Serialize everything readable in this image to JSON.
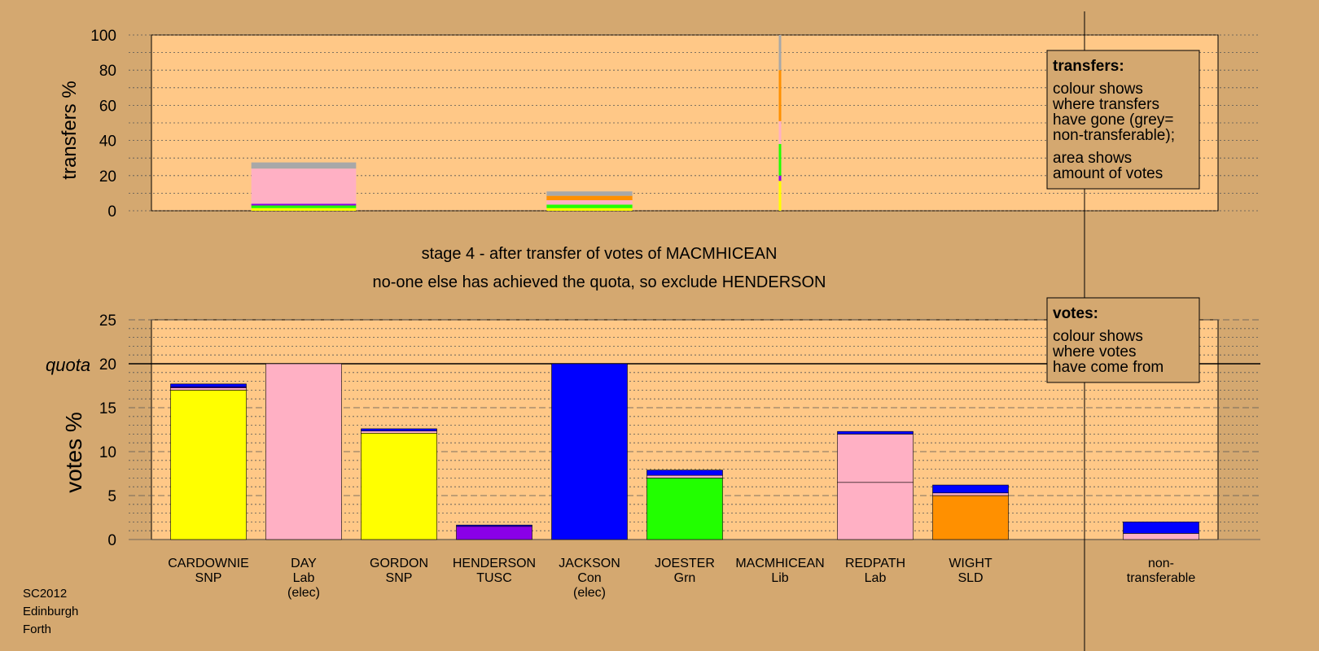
{
  "colors": {
    "background": "#d4a870",
    "plot_area": "#ffc887",
    "yellow": "#ffff00",
    "pink": "#ffb0c4",
    "blue": "#0000ff",
    "purple": "#8a00e8",
    "green": "#22ff00",
    "orange": "#ff9000",
    "grey": "#a8a8a8"
  },
  "stage_title": "stage 4 - after transfer of votes of MACMHICEAN",
  "stage_subtitle": "no-one else has achieved the quota, so exclude HENDERSON",
  "footer": [
    "SC2012",
    "Edinburgh",
    "Forth"
  ],
  "transfers_legend": {
    "heading": "transfers:",
    "lines1": [
      "colour shows",
      "where transfers",
      "have gone (grey=",
      "non-transferable);"
    ],
    "lines2": [
      "area shows",
      "amount of votes"
    ]
  },
  "votes_legend": {
    "heading": "votes:",
    "lines": [
      "colour shows",
      "where votes",
      "have come from"
    ]
  },
  "chart_data": [
    {
      "type": "bar",
      "name": "transfers",
      "ylabel": "transfers %",
      "ylim": [
        0,
        100
      ],
      "yticks": [
        0,
        20,
        40,
        60,
        80,
        100
      ],
      "grid": true,
      "bars": [
        {
          "slot": 2,
          "width": 1.1,
          "segments": [
            {
              "color": "yellow",
              "value": 1.5
            },
            {
              "color": "green",
              "value": 1.5
            },
            {
              "color": "purple",
              "value": 1
            },
            {
              "color": "pink",
              "value": 20
            },
            {
              "color": "grey",
              "value": 3.5
            }
          ]
        },
        {
          "slot": 5,
          "width": 0.9,
          "segments": [
            {
              "color": "yellow",
              "value": 1.5
            },
            {
              "color": "green",
              "value": 2
            },
            {
              "color": "pink",
              "value": 2.5
            },
            {
              "color": "orange",
              "value": 2.5
            },
            {
              "color": "grey",
              "value": 2.5
            }
          ]
        },
        {
          "slot": 7,
          "width": 0.03,
          "segments": [
            {
              "color": "yellow",
              "value": 17
            },
            {
              "color": "purple",
              "value": 3
            },
            {
              "color": "green",
              "value": 18
            },
            {
              "color": "pink",
              "value": 13
            },
            {
              "color": "orange",
              "value": 29
            },
            {
              "color": "grey",
              "value": 20
            }
          ]
        }
      ]
    },
    {
      "type": "bar",
      "name": "votes",
      "ylabel": "votes %",
      "ylim": [
        0,
        25
      ],
      "yticks": [
        0,
        5,
        10,
        15,
        20,
        25
      ],
      "quota": 20,
      "quota_label": "quota",
      "grid": true,
      "categories": [
        {
          "name": "CARDOWNIE",
          "party": "SNP",
          "note": "",
          "segments": [
            {
              "color": "yellow",
              "value": 17.0
            },
            {
              "color": "pink",
              "value": 0.25
            },
            {
              "color": "purple",
              "value": 0.1
            },
            {
              "color": "blue",
              "value": 0.35
            }
          ]
        },
        {
          "name": "DAY",
          "party": "Lab",
          "note": "(elec)",
          "segments": [
            {
              "color": "pink",
              "value": 20.0
            }
          ]
        },
        {
          "name": "GORDON",
          "party": "SNP",
          "note": "",
          "segments": [
            {
              "color": "yellow",
              "value": 12.1
            },
            {
              "color": "pink",
              "value": 0.25
            },
            {
              "color": "blue",
              "value": 0.25
            }
          ]
        },
        {
          "name": "HENDERSON",
          "party": "TUSC",
          "note": "",
          "segments": [
            {
              "color": "purple",
              "value": 1.5
            },
            {
              "color": "blue",
              "value": 0.15
            }
          ]
        },
        {
          "name": "JACKSON",
          "party": "Con",
          "note": "(elec)",
          "segments": [
            {
              "color": "blue",
              "value": 20.0
            }
          ]
        },
        {
          "name": "JOESTER",
          "party": "Grn",
          "note": "",
          "segments": [
            {
              "color": "green",
              "value": 7.0
            },
            {
              "color": "pink",
              "value": 0.3
            },
            {
              "color": "blue",
              "value": 0.6
            }
          ]
        },
        {
          "name": "MACMHICEAN",
          "party": "Lib",
          "note": "",
          "segments": []
        },
        {
          "name": "REDPATH",
          "party": "Lab",
          "note": "",
          "segments": [
            {
              "color": "pink",
              "value": 6.5
            },
            {
              "color": "pink",
              "value": 5.5
            },
            {
              "color": "blue",
              "value": 0.3
            }
          ]
        },
        {
          "name": "WIGHT",
          "party": "SLD",
          "note": "",
          "segments": [
            {
              "color": "orange",
              "value": 5.0
            },
            {
              "color": "pink",
              "value": 0.3
            },
            {
              "color": "blue",
              "value": 0.9
            }
          ]
        },
        {
          "name": "non-",
          "party": "transferable",
          "note": "",
          "slot": 11,
          "segments": [
            {
              "color": "pink",
              "value": 0.7
            },
            {
              "color": "blue",
              "value": 1.3
            }
          ]
        }
      ]
    }
  ]
}
